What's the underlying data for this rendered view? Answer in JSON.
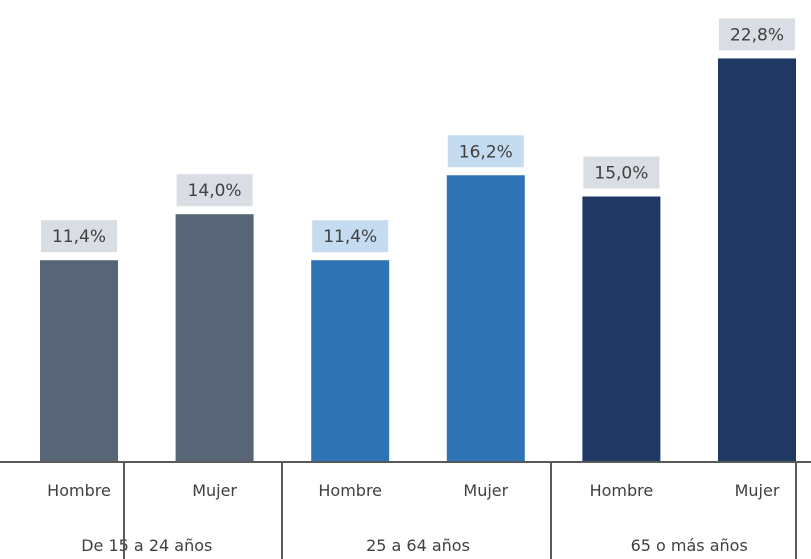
{
  "chart_data": {
    "type": "bar",
    "title": "",
    "xlabel": "",
    "ylabel": "",
    "ylim": [
      0,
      24
    ],
    "grid": false,
    "legend": "none",
    "groups": [
      {
        "label": "De 15 a 24 años",
        "color": "#586576",
        "label_bg": "#D9DDE4",
        "bars": [
          {
            "category": "Hombre",
            "value": 11.4,
            "label": "11,4%"
          },
          {
            "category": "Mujer",
            "value": 14.0,
            "label": "14,0%"
          }
        ]
      },
      {
        "label": "25 a 64 años",
        "color": "#2E74B5",
        "label_bg": "#C5DCF0",
        "bars": [
          {
            "category": "Hombre",
            "value": 11.4,
            "label": "11,4%"
          },
          {
            "category": "Mujer",
            "value": 16.2,
            "label": "16,2%"
          }
        ]
      },
      {
        "label": "65 o más años",
        "color": "#1F3864",
        "label_bg": "#D9DDE4",
        "bars": [
          {
            "category": "Hombre",
            "value": 15.0,
            "label": "15,0%"
          },
          {
            "category": "Mujer",
            "value": 22.8,
            "label": "22,8%"
          }
        ]
      }
    ]
  }
}
